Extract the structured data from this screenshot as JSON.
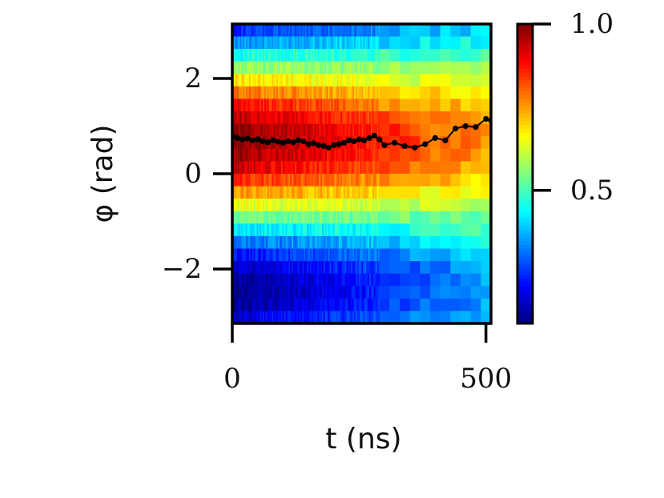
{
  "chart_data": {
    "type": "heatmap",
    "xlabel": "t (ns)",
    "ylabel": "φ (rad)",
    "x_range_ns": [
      0,
      510
    ],
    "y_range_rad": [
      -3.1416,
      3.1416
    ],
    "xticks": [
      {
        "value": 0,
        "label": "0"
      },
      {
        "value": 500,
        "label": "500"
      }
    ],
    "yticks": [
      {
        "value": 2,
        "label": "2"
      },
      {
        "value": 0,
        "label": "0"
      },
      {
        "value": -2,
        "label": "−2"
      }
    ],
    "colormap": "jet",
    "colorbar": {
      "range": [
        0.1,
        1.0
      ],
      "ticks": [
        {
          "value": 1.0,
          "label": "1.0"
        },
        {
          "value": 0.5,
          "label": "0.5"
        }
      ]
    },
    "heatmap_description": {
      "peak_phase_rad": 0.7,
      "low_phase_rad": -2.5,
      "time_contrast_decay": "contrast decreases with t"
    },
    "trace": {
      "description": "mean phase vs time (black line with markers)",
      "t_ns": [
        0,
        10,
        20,
        30,
        40,
        50,
        60,
        70,
        80,
        90,
        100,
        110,
        120,
        130,
        140,
        150,
        160,
        170,
        180,
        190,
        200,
        210,
        220,
        230,
        240,
        250,
        260,
        270,
        280,
        290,
        300,
        320,
        340,
        360,
        380,
        400,
        420,
        440,
        460,
        480,
        500,
        510
      ],
      "phi_rad": [
        0.8,
        0.75,
        0.72,
        0.74,
        0.7,
        0.72,
        0.68,
        0.66,
        0.7,
        0.67,
        0.65,
        0.68,
        0.66,
        0.7,
        0.68,
        0.62,
        0.64,
        0.6,
        0.58,
        0.55,
        0.6,
        0.62,
        0.65,
        0.7,
        0.68,
        0.72,
        0.7,
        0.75,
        0.8,
        0.72,
        0.6,
        0.65,
        0.58,
        0.55,
        0.62,
        0.75,
        0.7,
        0.95,
        1.0,
        0.98,
        1.15,
        1.12
      ]
    }
  }
}
